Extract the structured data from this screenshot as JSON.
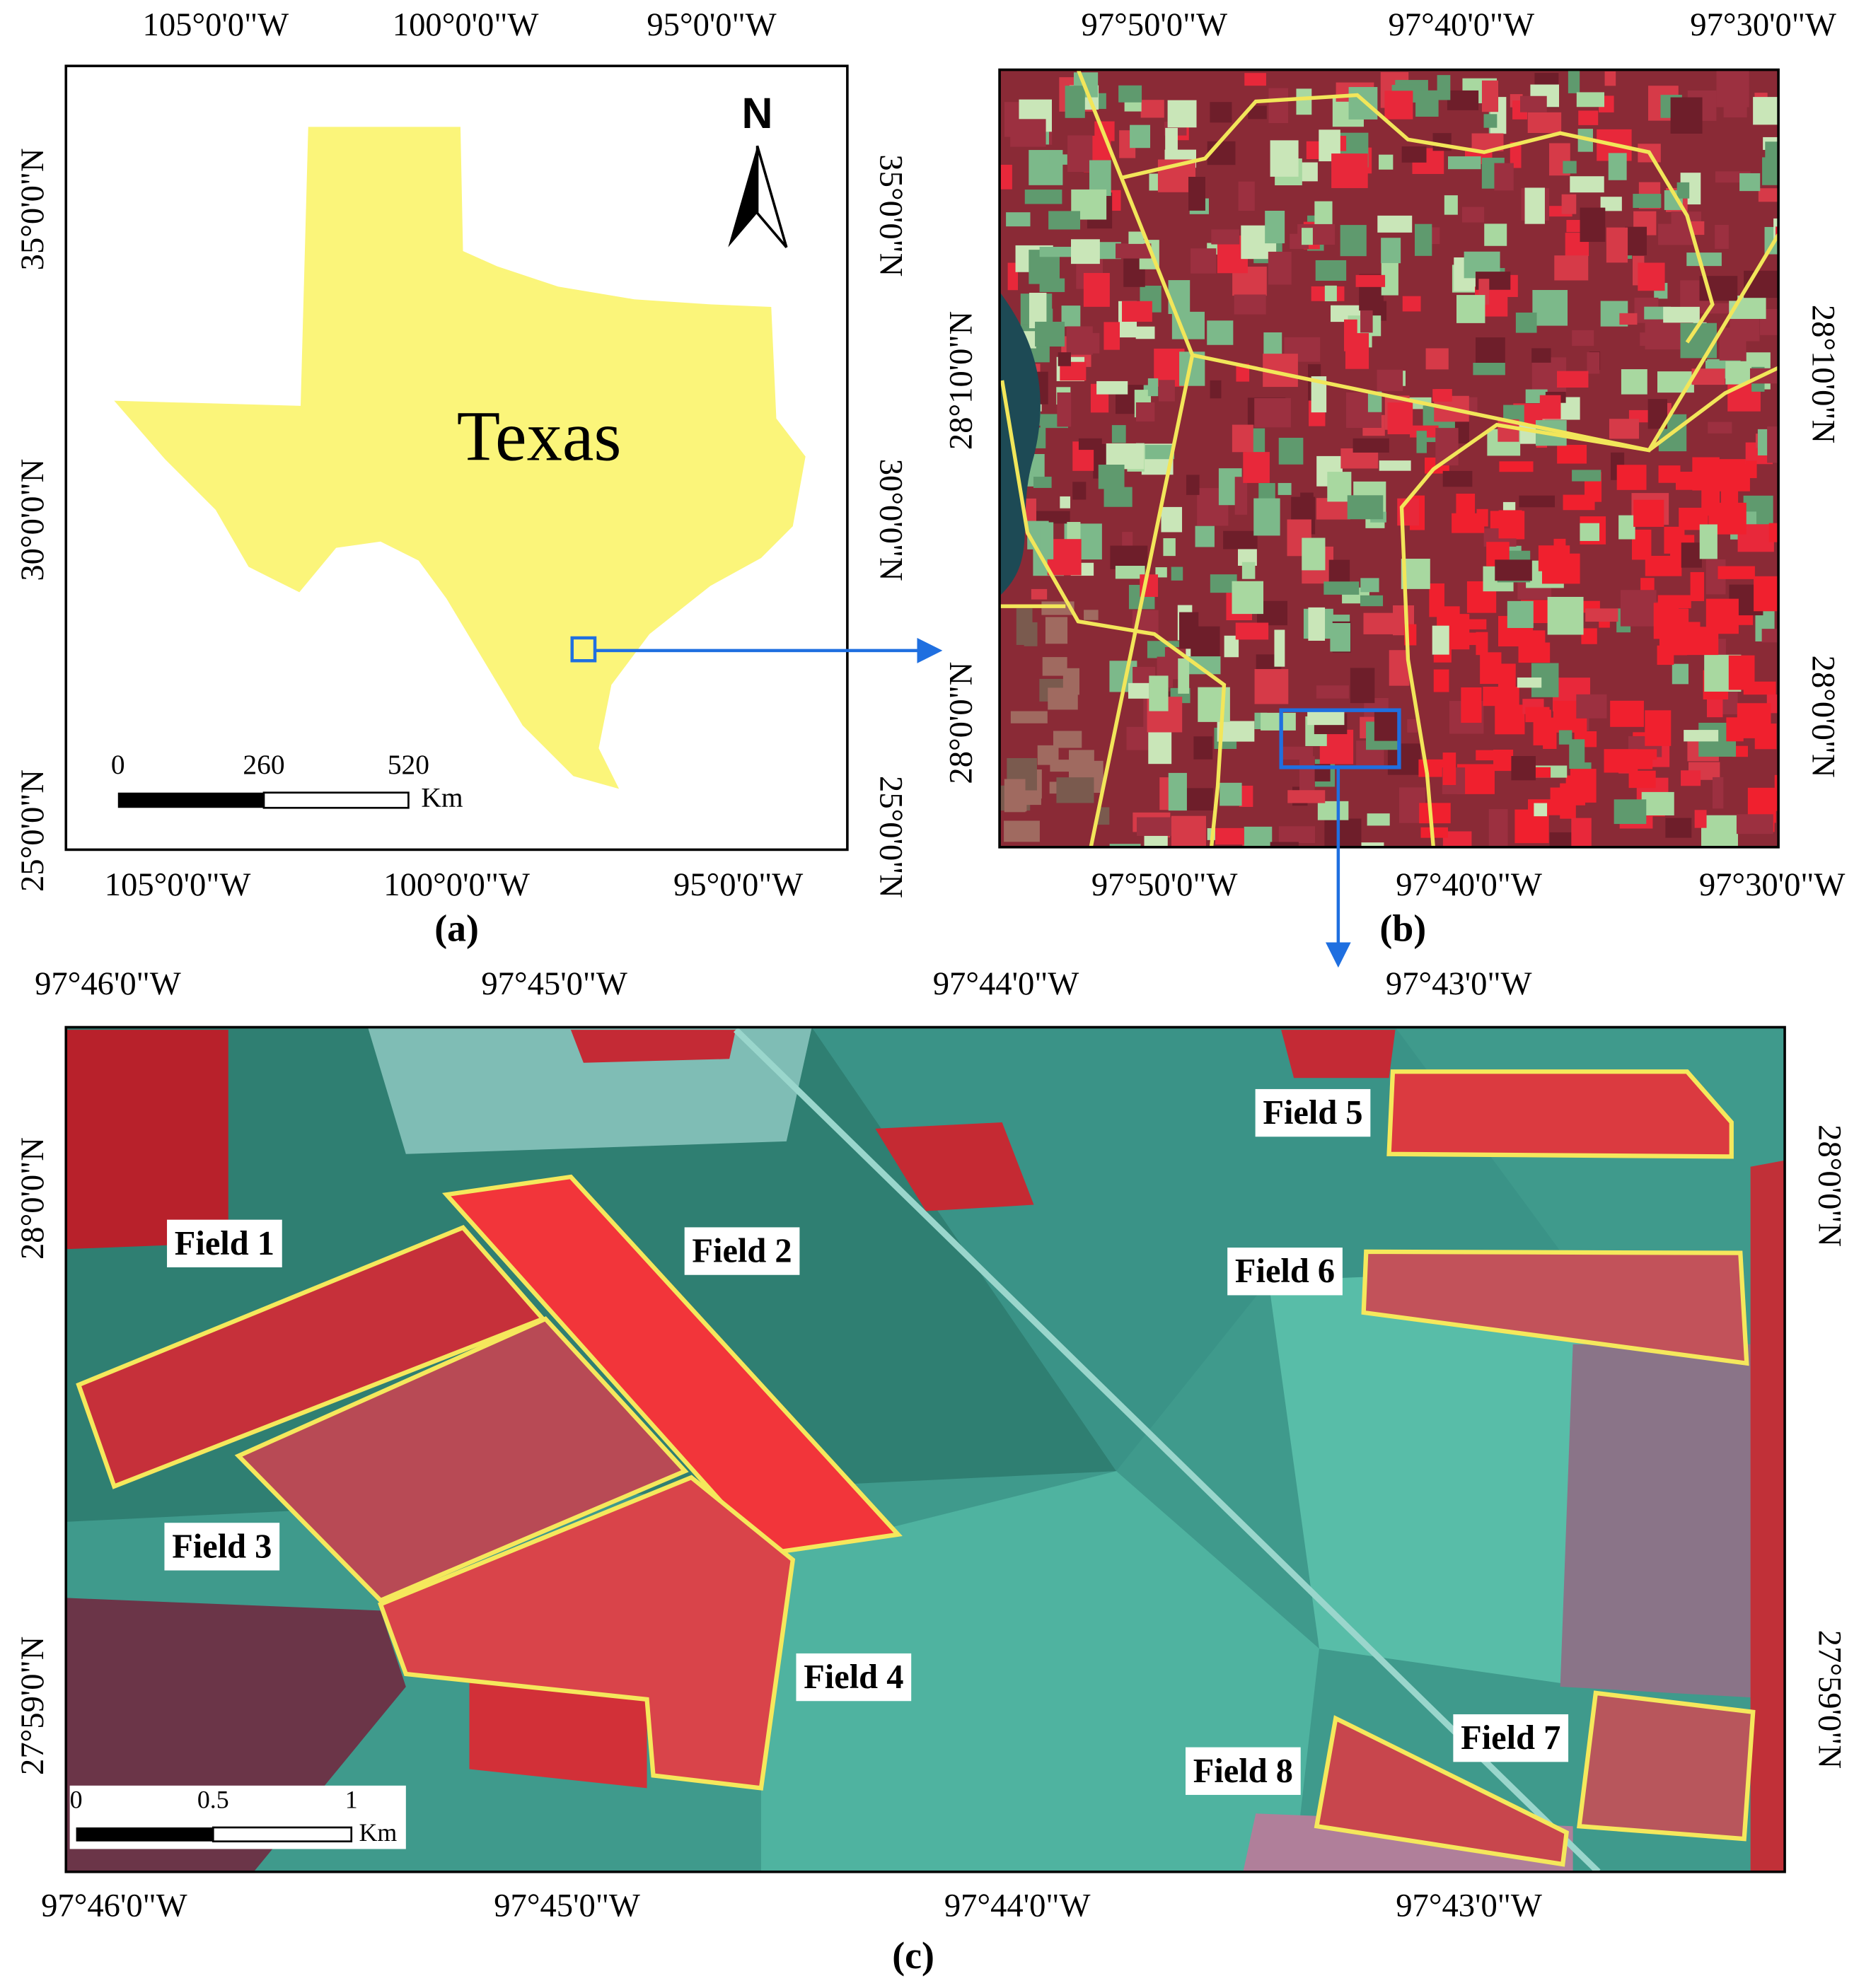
{
  "panel_a": {
    "caption": "(a)",
    "top_labels": [
      "105°0'0\"W",
      "100°0'0\"W",
      "95°0'0\"W"
    ],
    "bottom_labels": [
      "105°0'0\"W",
      "100°0'0\"W",
      "95°0'0\"W"
    ],
    "left_labels": [
      "35°0'0\"N",
      "30°0'0\"N",
      "25°0'0\"N"
    ],
    "right_labels": [
      "35°0'0\"N",
      "30°0'0\"N",
      "25°0'0\"N"
    ],
    "place_label": "Texas",
    "north_label": "N",
    "scale_labels": [
      "0",
      "260",
      "520"
    ],
    "scale_unit": "Km"
  },
  "panel_b": {
    "caption": "(b)",
    "top_labels": [
      "97°50'0\"W",
      "97°40'0\"W",
      "97°30'0\"W"
    ],
    "bottom_labels": [
      "97°50'0\"W",
      "97°40'0\"W",
      "97°30'0\"W"
    ],
    "left_labels": [
      "28°10'0\"N",
      "28°0'0\"N"
    ],
    "right_labels": [
      "28°10'0\"N",
      "28°0'0\"N"
    ]
  },
  "panel_c": {
    "caption": "(c)",
    "top_labels": [
      "97°46'0\"W",
      "97°45'0\"W",
      "97°44'0\"W",
      "97°43'0\"W"
    ],
    "bottom_labels": [
      "97°46'0\"W",
      "97°45'0\"W",
      "97°44'0\"W",
      "97°43'0\"W"
    ],
    "left_labels": [
      "28°0'0\"N",
      "27°59'0\"N"
    ],
    "right_labels": [
      "28°0'0\"N",
      "27°59'0\"N"
    ],
    "field_labels": [
      "Field 1",
      "Field 2",
      "Field 3",
      "Field 4",
      "Field 5",
      "Field 6",
      "Field 7",
      "Field 8"
    ],
    "scale_labels": [
      "0",
      "0.5",
      "1"
    ],
    "scale_unit": "Km"
  }
}
